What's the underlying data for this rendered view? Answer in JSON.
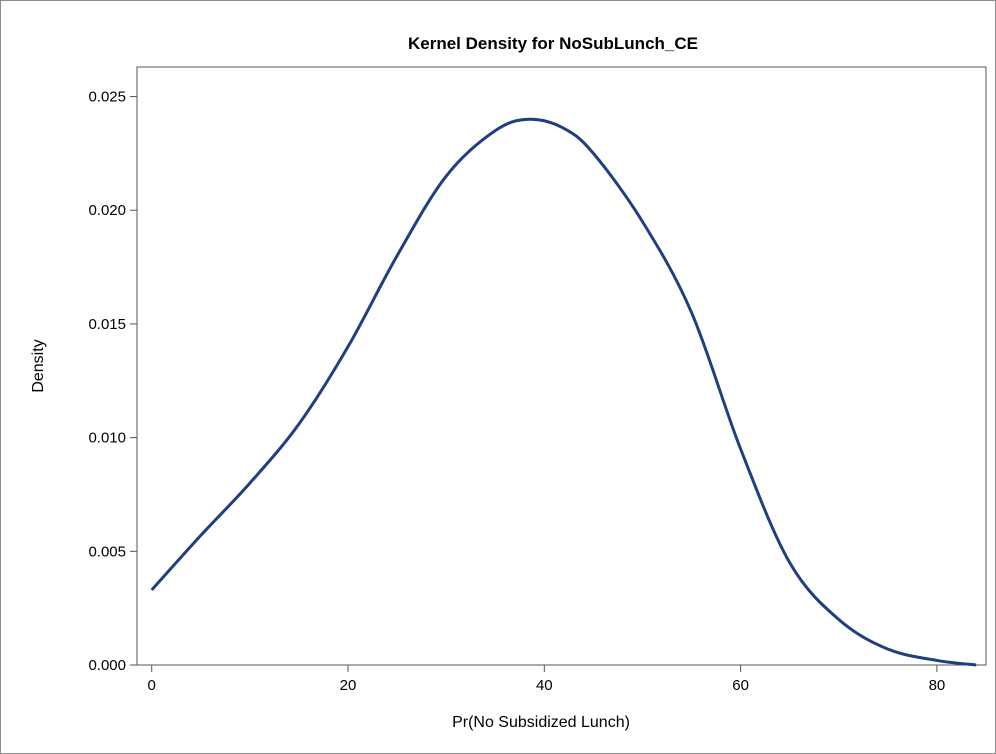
{
  "chart_data": {
    "type": "line",
    "title": "Kernel Density for NoSubLunch_CE",
    "xlabel": "Pr(No Subsidized Lunch)",
    "ylabel": "Density",
    "xlim": [
      -1.5,
      85
    ],
    "ylim": [
      0,
      0.0263
    ],
    "x_ticks": [
      0,
      20,
      40,
      60,
      80
    ],
    "y_ticks": [
      0.0,
      0.005,
      0.01,
      0.015,
      0.02,
      0.025
    ],
    "x_tick_labels": [
      "0",
      "20",
      "40",
      "60",
      "80"
    ],
    "y_tick_labels": [
      "0.000",
      "0.005",
      "0.010",
      "0.015",
      "0.020",
      "0.025"
    ],
    "grid": false,
    "legend": "none",
    "series": [
      {
        "color": "#1f3f7f",
        "x": [
          0,
          5,
          10,
          15,
          20,
          25,
          30,
          35,
          38.5,
          42,
          45,
          50,
          55,
          60,
          65,
          70,
          75,
          80,
          84
        ],
        "y": [
          0.0033,
          0.0057,
          0.008,
          0.0106,
          0.014,
          0.018,
          0.0215,
          0.0235,
          0.024,
          0.0236,
          0.0225,
          0.0195,
          0.0155,
          0.0095,
          0.0045,
          0.002,
          0.0007,
          0.0002,
          0.0
        ]
      }
    ]
  }
}
